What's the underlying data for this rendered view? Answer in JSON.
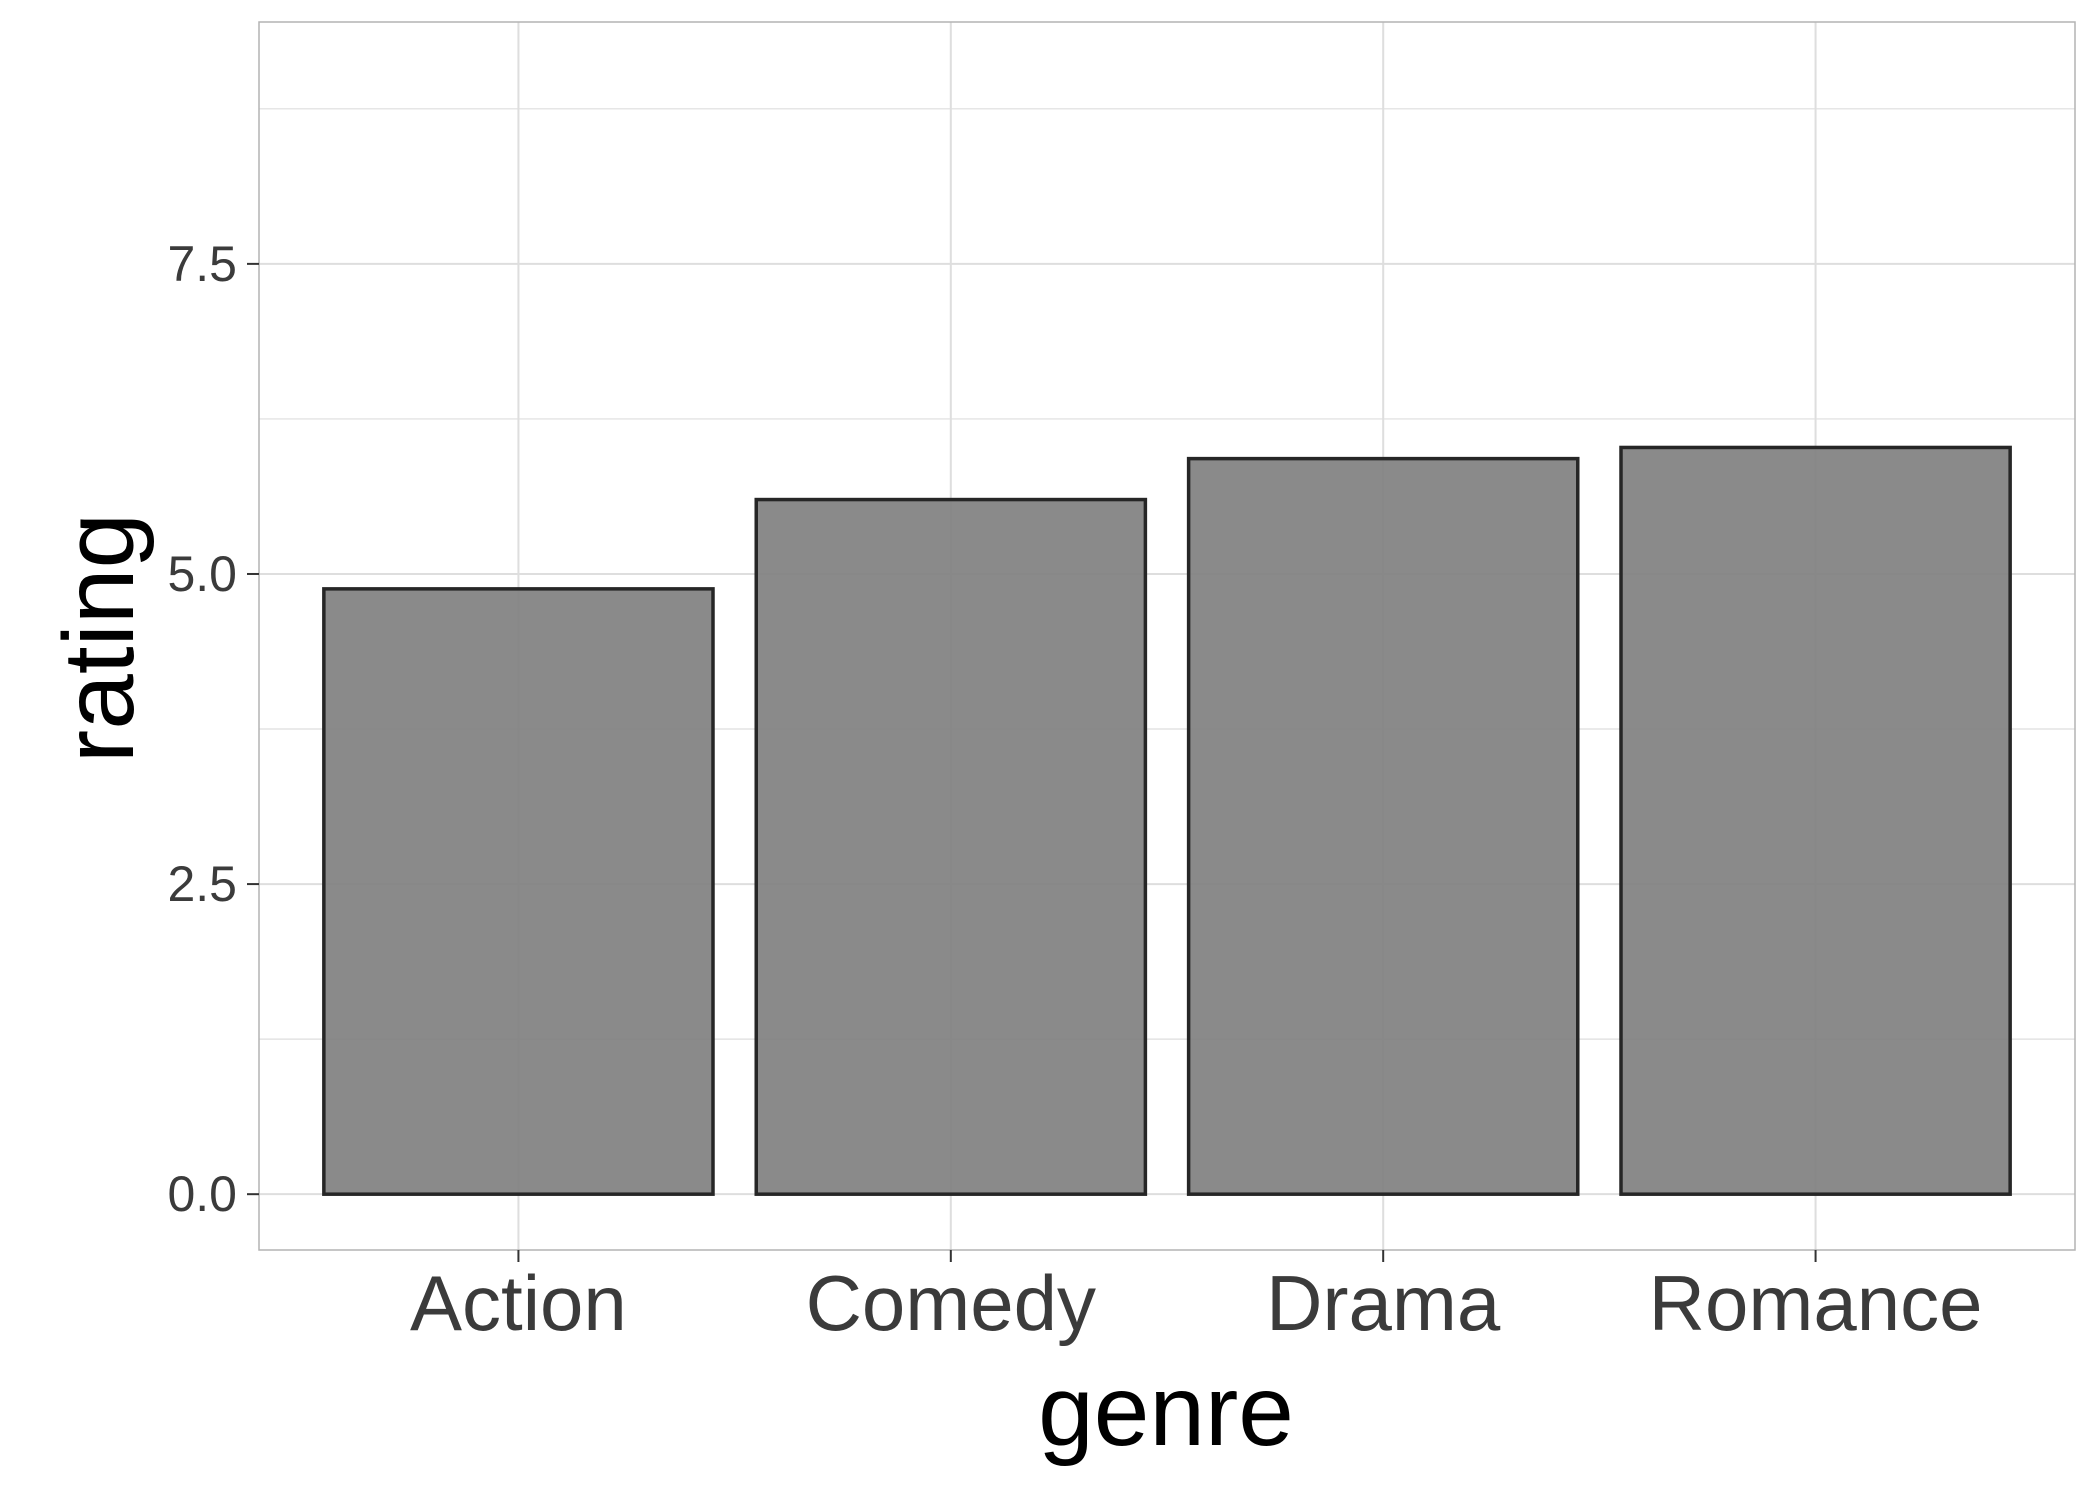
{
  "chart_data": {
    "type": "bar",
    "categories": [
      "Action",
      "Comedy",
      "Drama",
      "Romance"
    ],
    "values": [
      4.88,
      5.6,
      5.93,
      6.02
    ],
    "xlabel": "genre",
    "ylabel": "rating",
    "ylim": [
      -0.45,
      9.45
    ],
    "yticks": [
      0.0,
      2.5,
      5.0,
      7.5
    ],
    "ytick_labels": [
      "0.0",
      "2.5",
      "5.0",
      "7.5"
    ],
    "grid": true,
    "bar_fill": "#808080",
    "bar_outline": "#262626",
    "grid_color": "#dedede",
    "panel_border_color": "#b3b3b3"
  }
}
